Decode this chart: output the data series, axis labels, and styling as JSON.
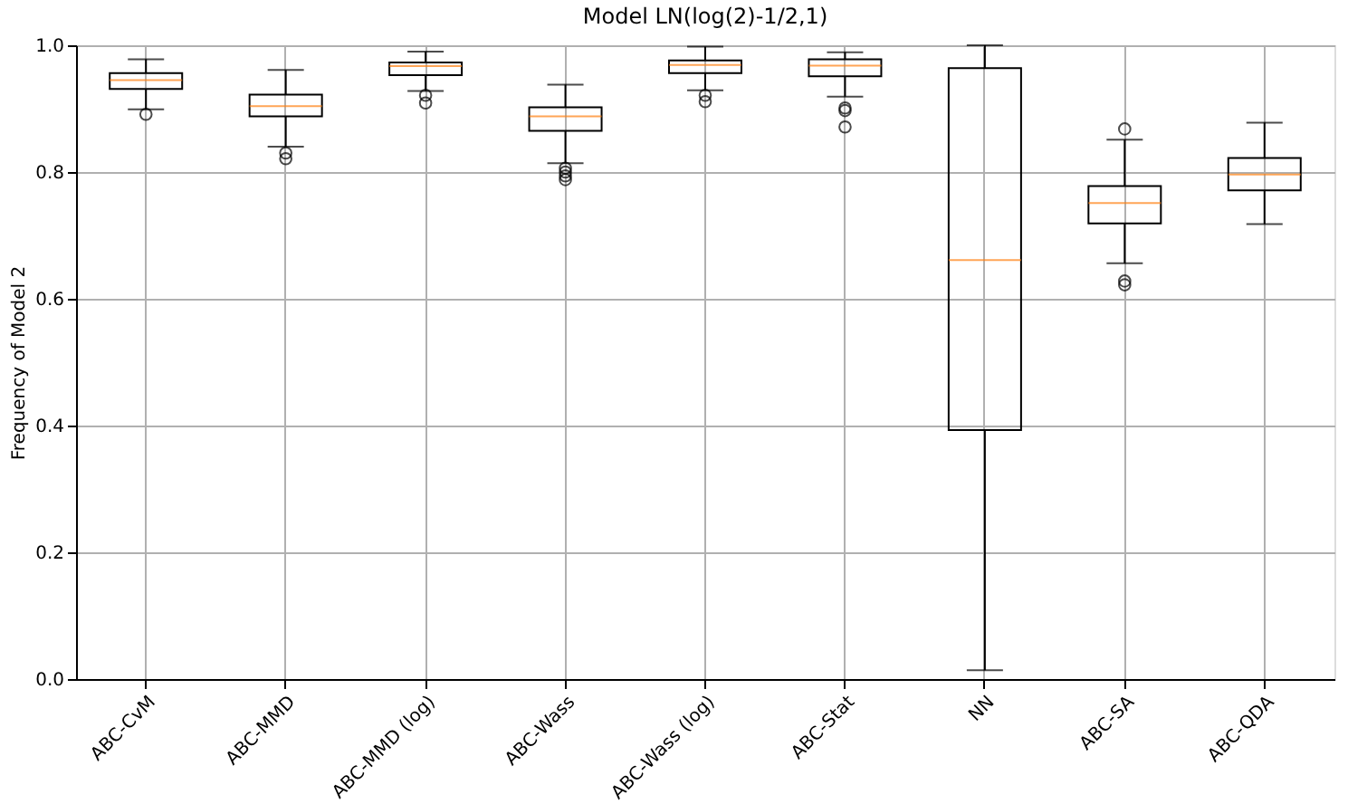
{
  "chart_data": {
    "type": "box",
    "title": "Model LN(log(2)-1/2,1)",
    "ylabel": "Frequency of Model 2",
    "categories": [
      "ABC-CvM",
      "ABC-MMD",
      "ABC-MMD (log)",
      "ABC-Wass",
      "ABC-Wass (log)",
      "ABC-Stat",
      "NN",
      "ABC-SA",
      "ABC-QDA"
    ],
    "boxes": [
      {
        "low": 0.899,
        "q1": 0.931,
        "median": 0.945,
        "q3": 0.956,
        "high": 0.978,
        "outliers": [
          0.891
        ]
      },
      {
        "low": 0.84,
        "q1": 0.888,
        "median": 0.904,
        "q3": 0.922,
        "high": 0.961,
        "outliers": [
          0.83,
          0.821
        ]
      },
      {
        "low": 0.928,
        "q1": 0.953,
        "median": 0.967,
        "q3": 0.973,
        "high": 0.99,
        "outliers": [
          0.921,
          0.909
        ]
      },
      {
        "low": 0.814,
        "q1": 0.865,
        "median": 0.888,
        "q3": 0.902,
        "high": 0.938,
        "outliers": [
          0.806,
          0.8,
          0.794,
          0.788
        ]
      },
      {
        "low": 0.929,
        "q1": 0.956,
        "median": 0.969,
        "q3": 0.976,
        "high": 0.998,
        "outliers": [
          0.921,
          0.911
        ]
      },
      {
        "low": 0.919,
        "q1": 0.951,
        "median": 0.968,
        "q3": 0.978,
        "high": 0.989,
        "outliers": [
          0.901,
          0.897,
          0.871
        ]
      },
      {
        "low": 0.014,
        "q1": 0.393,
        "median": 0.661,
        "q3": 0.964,
        "high": 1.0
      },
      {
        "low": 0.656,
        "q1": 0.719,
        "median": 0.751,
        "q3": 0.778,
        "high": 0.851,
        "outliers": [
          0.868,
          0.628,
          0.622
        ]
      },
      {
        "low": 0.718,
        "q1": 0.771,
        "median": 0.796,
        "q3": 0.822,
        "high": 0.878
      }
    ],
    "ylim": [
      0,
      1.0
    ],
    "yticks": [
      {
        "value": 0,
        "label": "0.0"
      },
      0.2,
      0.4,
      0.6,
      0.8,
      {
        "value": 1,
        "label": "1.0"
      }
    ],
    "grid": true,
    "color": "#ff7f0e"
  }
}
